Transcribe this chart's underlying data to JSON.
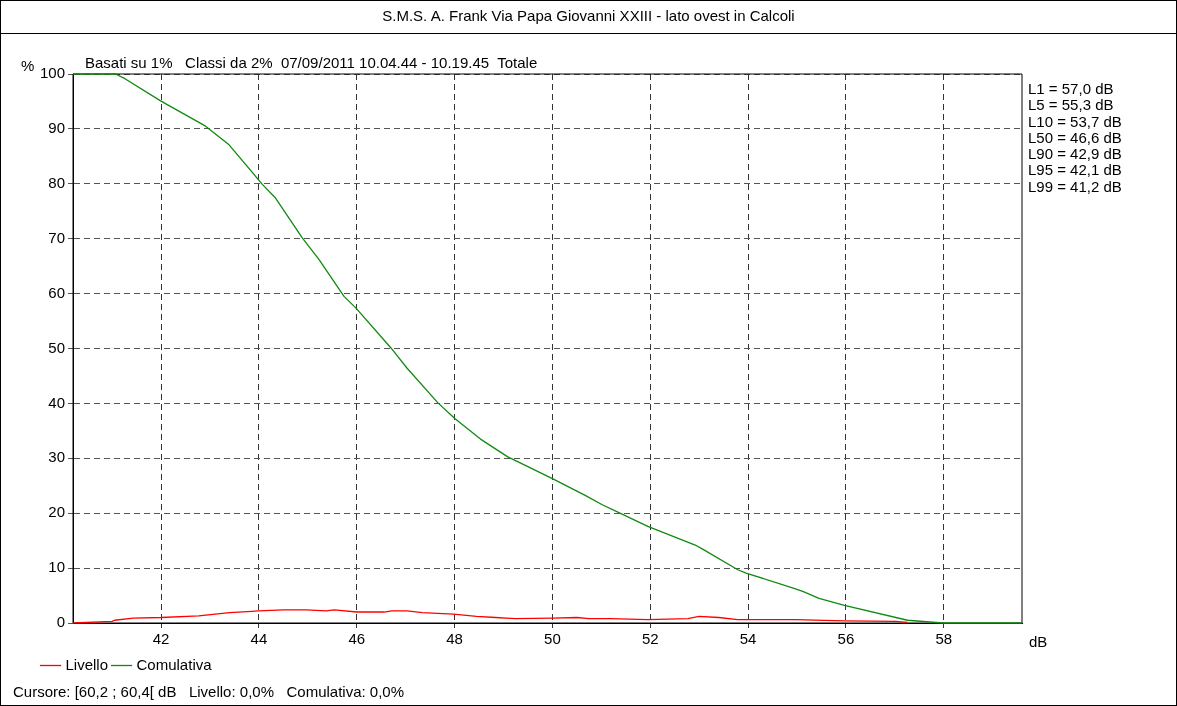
{
  "chart_data": {
    "type": "line",
    "title": "S.M.S. A. Frank Via Papa Giovanni XXIII - lato ovest in Calcoli",
    "subtitle": "Basati su 1%   Classi da 2%  07/09/2011 10.04.44 - 10.19.45  Totale",
    "xlabel": "dB",
    "ylabel": "%",
    "xlim": [
      40.2,
      59.6
    ],
    "xticks": [
      42,
      44,
      46,
      48,
      50,
      52,
      54,
      56,
      58
    ],
    "ylim": [
      0,
      100
    ],
    "yticks": [
      0,
      10,
      20,
      30,
      40,
      50,
      60,
      70,
      80,
      90,
      100
    ],
    "grid": true,
    "legend": "bottom left",
    "marker": "none",
    "line_style": "solid",
    "series": [
      {
        "name": "Livello",
        "color": "#ff0000",
        "x": [
          40.2,
          41.0,
          41.05,
          41.43,
          42.0,
          42.77,
          43.4,
          44.0,
          44.5,
          44.98,
          45.37,
          45.54,
          46.0,
          46.56,
          46.71,
          47.03,
          47.34,
          47.98,
          48.45,
          48.84,
          49.24,
          50.0,
          50.5,
          50.75,
          51.19,
          51.95,
          52.77,
          53.0,
          53.4,
          53.79,
          54.97,
          55.97,
          57.02,
          57.26
        ],
        "values": [
          0,
          0.3,
          0.5,
          0.9,
          1.0,
          1.3,
          1.9,
          2.2,
          2.4,
          2.4,
          2.2,
          2.4,
          2.0,
          2.0,
          2.2,
          2.2,
          1.9,
          1.6,
          1.2,
          1.0,
          0.8,
          0.9,
          1.0,
          0.8,
          0.8,
          0.6,
          0.8,
          1.2,
          1.0,
          0.6,
          0.6,
          0.4,
          0.3,
          0.1
        ]
      },
      {
        "name": "Comulativa",
        "color": "#108a10",
        "x": [
          40.2,
          41.07,
          41.27,
          41.99,
          42.91,
          43.39,
          44.07,
          44.34,
          44.89,
          45.23,
          45.74,
          45.98,
          46.7,
          47.03,
          47.66,
          48.01,
          48.53,
          49.08,
          49.31,
          50.0,
          50.66,
          51.03,
          51.95,
          52.92,
          53.08,
          53.79,
          53.96,
          54.97,
          55.13,
          55.45,
          55.97,
          57.26,
          57.98,
          59.6
        ],
        "values": [
          100,
          100,
          99.1,
          95.1,
          90.5,
          87.1,
          79.9,
          77.4,
          70.1,
          66.2,
          59.5,
          57.4,
          50.1,
          46.4,
          40.1,
          37.2,
          33.5,
          30.3,
          29.3,
          26.3,
          23.3,
          21.5,
          17.6,
          14.2,
          13.4,
          9.7,
          9.1,
          6.2,
          5.7,
          4.5,
          3.2,
          0.5,
          0,
          0
        ]
      }
    ],
    "annotations": [
      "L1 = 57,0 dB",
      "L5 = 55,3 dB",
      "L10 = 53,7 dB",
      "L50 = 46,6 dB",
      "L90 = 42,9 dB",
      "L95 = 42,1 dB",
      "L99 = 41,2 dB",
      "Cursore: [60,2 ; 60,4[ dB   Livello: 0,0%   Comulativa: 0,0%"
    ]
  }
}
